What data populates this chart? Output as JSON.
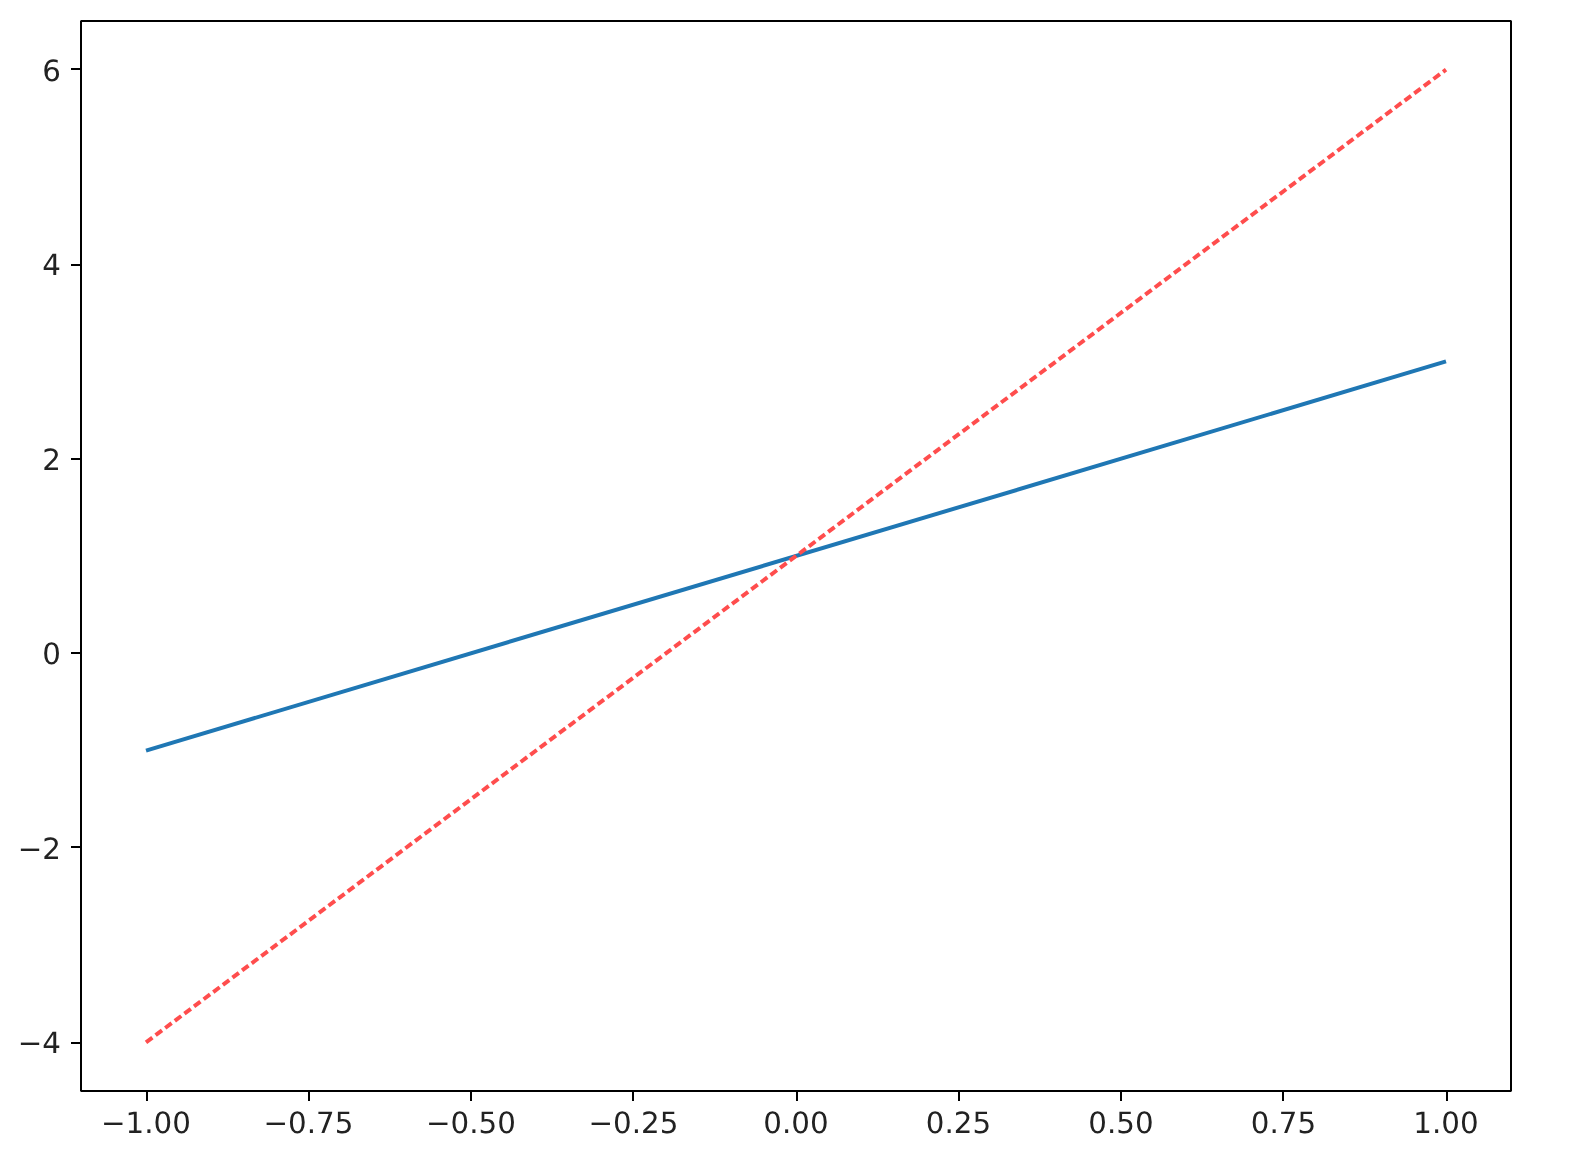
{
  "chart_data": {
    "type": "line",
    "series": [
      {
        "color": "#1f77b4",
        "values": [
          -1,
          3
        ],
        "line_style": "solid"
      },
      {
        "color": "#ff4d4d",
        "values": [
          -4,
          6
        ],
        "line_style": "dashed"
      }
    ],
    "xlim": [
      -1.1,
      1.1
    ],
    "ylim": [
      -4.5,
      6.5
    ],
    "xticks": [
      {
        "value": -1,
        "label": "−1.00"
      },
      {
        "value": -0.75,
        "label": "−0.75"
      },
      {
        "value": -0.5,
        "label": "−0.50"
      },
      {
        "value": -0.25,
        "label": "−0.25"
      },
      {
        "value": 0,
        "label": "0.00"
      },
      {
        "value": 0.25,
        "label": "0.25"
      },
      {
        "value": 0.5,
        "label": "0.50"
      },
      {
        "value": 0.75,
        "label": "0.75"
      },
      {
        "value": 1,
        "label": "1.00"
      }
    ],
    "yticks": [
      {
        "value": -4,
        "label": "−4"
      },
      {
        "value": -2,
        "label": "−2"
      },
      0,
      2,
      4,
      6
    ],
    "x": [
      -1,
      1
    ],
    "grid": false,
    "marker": "none"
  }
}
